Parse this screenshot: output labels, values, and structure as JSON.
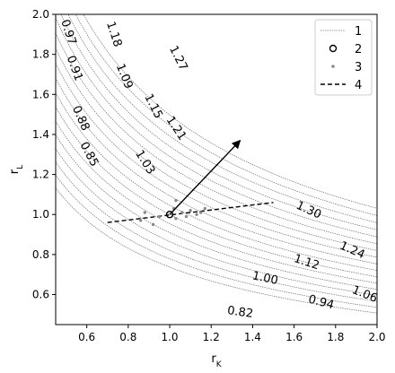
{
  "chart_data": {
    "type": "line",
    "xlabel": "r_K",
    "ylabel": "r_L",
    "xlim": [
      0.45,
      2.0
    ],
    "ylim": [
      0.45,
      2.0
    ],
    "xticks": [
      {
        "v": 0.6,
        "t": "0.6"
      },
      {
        "v": 0.8,
        "t": "0.8"
      },
      {
        "v": 1.0,
        "t": "1.0"
      },
      {
        "v": 1.2,
        "t": "1.2"
      },
      {
        "v": 1.4,
        "t": "1.4"
      },
      {
        "v": 1.6,
        "t": "1.6"
      },
      {
        "v": 1.8,
        "t": "1.8"
      },
      {
        "v": 2.0,
        "t": "2.0"
      }
    ],
    "yticks": [
      {
        "v": 0.6,
        "t": "0.6"
      },
      {
        "v": 0.8,
        "t": "0.8"
      },
      {
        "v": 1.0,
        "t": "1.0"
      },
      {
        "v": 1.2,
        "t": "1.2"
      },
      {
        "v": 1.4,
        "t": "1.4"
      },
      {
        "v": 1.6,
        "t": "1.6"
      },
      {
        "v": 1.8,
        "t": "1.8"
      },
      {
        "v": 2.0,
        "t": "2.0"
      }
    ],
    "contour_levels": [
      0.82,
      0.85,
      0.88,
      0.91,
      0.94,
      0.97,
      1.0,
      1.03,
      1.06,
      1.09,
      1.12,
      1.15,
      1.18,
      1.21,
      1.24,
      1.27,
      1.3
    ],
    "contour_labels": [
      {
        "text": "0.97",
        "x": 0.51,
        "y": 1.91,
        "rot": 72
      },
      {
        "text": "0.91",
        "x": 0.54,
        "y": 1.73,
        "rot": 70
      },
      {
        "text": "0.88",
        "x": 0.57,
        "y": 1.48,
        "rot": 66
      },
      {
        "text": "0.85",
        "x": 0.61,
        "y": 1.3,
        "rot": 62
      },
      {
        "text": "1.18",
        "x": 0.73,
        "y": 1.9,
        "rot": 72
      },
      {
        "text": "1.09",
        "x": 0.78,
        "y": 1.69,
        "rot": 68
      },
      {
        "text": "1.15",
        "x": 0.92,
        "y": 1.54,
        "rot": 63
      },
      {
        "text": "1.03",
        "x": 0.88,
        "y": 1.26,
        "rot": 58
      },
      {
        "text": "1.27",
        "x": 1.04,
        "y": 1.78,
        "rot": 63
      },
      {
        "text": "1.21",
        "x": 1.03,
        "y": 1.43,
        "rot": 56
      },
      {
        "text": "1.30",
        "x": 1.67,
        "y": 1.02,
        "rot": 24
      },
      {
        "text": "1.24",
        "x": 1.88,
        "y": 0.82,
        "rot": 24
      },
      {
        "text": "1.12",
        "x": 1.66,
        "y": 0.76,
        "rot": 18
      },
      {
        "text": "1.00",
        "x": 1.46,
        "y": 0.68,
        "rot": 12
      },
      {
        "text": "1.06",
        "x": 1.94,
        "y": 0.6,
        "rot": 22
      },
      {
        "text": "0.94",
        "x": 1.73,
        "y": 0.56,
        "rot": 15
      },
      {
        "text": "0.82",
        "x": 1.34,
        "y": 0.51,
        "rot": 8
      }
    ],
    "circle_point": {
      "x": 1.0,
      "y": 1.0
    },
    "scatter_points": [
      {
        "x": 0.86,
        "y": 0.97
      },
      {
        "x": 0.88,
        "y": 1.01
      },
      {
        "x": 0.92,
        "y": 0.95
      },
      {
        "x": 0.95,
        "y": 0.99
      },
      {
        "x": 1.02,
        "y": 1.03
      },
      {
        "x": 1.03,
        "y": 0.98
      },
      {
        "x": 1.06,
        "y": 1.01
      },
      {
        "x": 1.08,
        "y": 0.99
      },
      {
        "x": 1.1,
        "y": 1.02
      },
      {
        "x": 1.13,
        "y": 1.0
      },
      {
        "x": 1.15,
        "y": 1.01
      },
      {
        "x": 1.17,
        "y": 1.03
      },
      {
        "x": 1.03,
        "y": 1.07
      }
    ],
    "dashed_line": [
      {
        "x": 0.7,
        "y": 0.96
      },
      {
        "x": 1.5,
        "y": 1.06
      }
    ],
    "arrow": {
      "from": {
        "x": 1.0,
        "y": 1.0
      },
      "to": {
        "x": 1.34,
        "y": 1.37
      }
    },
    "legend_position": "top-right",
    "legend": [
      {
        "label": "1",
        "kind": "thin-line"
      },
      {
        "label": "2",
        "kind": "open-circle"
      },
      {
        "label": "3",
        "kind": "dot"
      },
      {
        "label": "4",
        "kind": "dashed"
      }
    ]
  }
}
